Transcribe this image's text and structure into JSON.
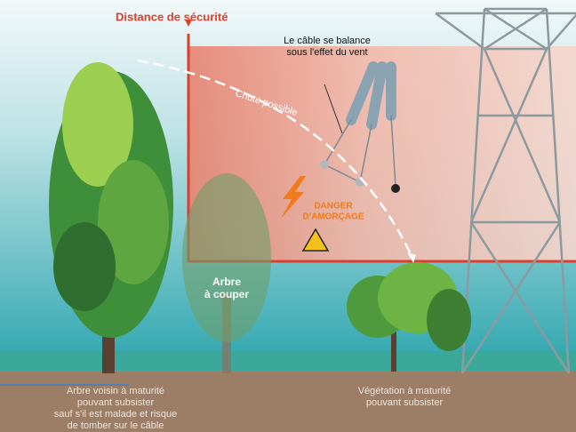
{
  "labels": {
    "safety_distance": "Distance de sécurité",
    "cable_sway": [
      "Le câble se balance",
      "sous l'effet du vent"
    ],
    "possible_fall": "Chute possible",
    "danger": [
      "DANGER",
      "D'AMORÇAGE"
    ],
    "tree_to_cut": [
      "Arbre",
      "à couper"
    ],
    "neighbor_tree": [
      "Arbre voisin à maturité",
      "pouvant subsister",
      "sauf s'il est malade et risque",
      "de tomber sur le câble"
    ],
    "vegetation": [
      "Végétation à maturité",
      "pouvant subsister"
    ]
  }
}
